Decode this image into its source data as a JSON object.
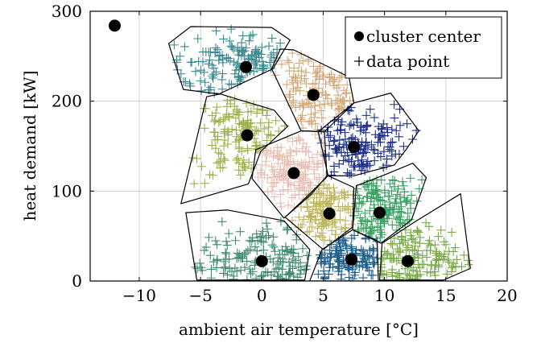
{
  "chart_data": {
    "type": "scatter",
    "xlabel": "ambient air temperature [°C]",
    "ylabel": "heat demand [kW]",
    "xlim": [
      -14,
      20
    ],
    "ylim": [
      0,
      300
    ],
    "xticks": [
      -10,
      -5,
      0,
      5,
      10,
      15,
      20
    ],
    "yticks": [
      0,
      100,
      200,
      300
    ],
    "xtick_labels": [
      "−10",
      "−5",
      "0",
      "5",
      "10",
      "15",
      "20"
    ],
    "ytick_labels": [
      "0",
      "100",
      "200",
      "300"
    ],
    "grid": true,
    "legend": {
      "placement": "top-right",
      "entries": [
        {
          "marker": "dot",
          "label": "cluster center"
        },
        {
          "marker": "plus",
          "label": "data point"
        }
      ]
    },
    "cluster_centers": [
      {
        "x": -12,
        "y": 284
      },
      {
        "x": -1.3,
        "y": 238
      },
      {
        "x": 4.2,
        "y": 207
      },
      {
        "x": -1.2,
        "y": 162
      },
      {
        "x": 7.5,
        "y": 149
      },
      {
        "x": 2.6,
        "y": 120
      },
      {
        "x": 5.5,
        "y": 75
      },
      {
        "x": 9.6,
        "y": 76
      },
      {
        "x": 0,
        "y": 22
      },
      {
        "x": 7.3,
        "y": 24
      },
      {
        "x": 11.9,
        "y": 22
      }
    ],
    "clusters": [
      {
        "color": "#3a8a90",
        "cx": -1.3,
        "cy": 238,
        "sx": 2.5,
        "sy": 16,
        "n": 140,
        "polygon": [
          [
            -7.6,
            264
          ],
          [
            -5.8,
            283
          ],
          [
            0.8,
            282
          ],
          [
            2.3,
            268
          ],
          [
            0.9,
            236
          ],
          [
            -3.5,
            208
          ],
          [
            -6.4,
            213
          ]
        ]
      },
      {
        "color": "#d2aa7c",
        "cx": 4.2,
        "cy": 207,
        "sx": 1.7,
        "sy": 20,
        "n": 130,
        "polygon": [
          [
            2.6,
            257
          ],
          [
            7.1,
            227
          ],
          [
            7.5,
            198
          ],
          [
            5.1,
            166
          ],
          [
            3.2,
            167
          ],
          [
            0.8,
            236
          ],
          [
            1.5,
            258
          ]
        ]
      },
      {
        "color": "#9bb24f",
        "cx": -1.2,
        "cy": 162,
        "sx": 2.0,
        "sy": 20,
        "n": 140,
        "polygon": [
          [
            -4.5,
            205
          ],
          [
            -3.4,
            208
          ],
          [
            1.0,
            190
          ],
          [
            2.1,
            172
          ],
          [
            -0.1,
            144
          ],
          [
            -1.1,
            108
          ],
          [
            -6.6,
            86
          ],
          [
            -5.2,
            165
          ]
        ]
      },
      {
        "color": "#1e2f8a",
        "cx": 7.5,
        "cy": 149,
        "sx": 1.8,
        "sy": 18,
        "n": 150,
        "polygon": [
          [
            4.6,
            166
          ],
          [
            7.5,
            198
          ],
          [
            10.5,
            209
          ],
          [
            12.8,
            167
          ],
          [
            11.8,
            147
          ],
          [
            10.8,
            129
          ],
          [
            7.5,
            117
          ],
          [
            5.4,
            117
          ]
        ]
      },
      {
        "color": "#e8c0b5",
        "cx": 2.6,
        "cy": 120,
        "sx": 1.6,
        "sy": 18,
        "n": 150,
        "polygon": [
          [
            3.2,
            167
          ],
          [
            5.1,
            166
          ],
          [
            5.3,
            117
          ],
          [
            4.0,
            96
          ],
          [
            1.8,
            70
          ],
          [
            -0.8,
            114
          ],
          [
            -0.5,
            146
          ]
        ]
      },
      {
        "color": "#bfb660",
        "cx": 5.5,
        "cy": 75,
        "sx": 1.3,
        "sy": 16,
        "n": 130,
        "polygon": [
          [
            3.9,
            97
          ],
          [
            5.4,
            117
          ],
          [
            7.5,
            104
          ],
          [
            7.4,
            60
          ],
          [
            5.0,
            35
          ],
          [
            1.9,
            71
          ]
        ]
      },
      {
        "color": "#38a060",
        "cx": 9.6,
        "cy": 76,
        "sx": 1.7,
        "sy": 18,
        "n": 150,
        "polygon": [
          [
            7.7,
            106
          ],
          [
            10.0,
            118
          ],
          [
            12.3,
            131
          ],
          [
            13.4,
            115
          ],
          [
            12.2,
            68
          ],
          [
            9.7,
            42
          ],
          [
            7.4,
            57
          ]
        ]
      },
      {
        "color": "#3d8a70",
        "cx": 0,
        "cy": 22,
        "sx": 2.8,
        "sy": 16,
        "n": 150,
        "polygon": [
          [
            -6.2,
            76
          ],
          [
            -2.8,
            79
          ],
          [
            1.8,
            67
          ],
          [
            3.9,
            35
          ],
          [
            3.5,
            1
          ],
          [
            -5.3,
            1
          ]
        ]
      },
      {
        "color": "#1d5d8a",
        "cx": 7.3,
        "cy": 24,
        "sx": 1.5,
        "sy": 12,
        "n": 130,
        "polygon": [
          [
            4.9,
            35
          ],
          [
            7.4,
            57
          ],
          [
            9.4,
            45
          ],
          [
            9.5,
            0
          ],
          [
            3.9,
            0
          ]
        ]
      },
      {
        "color": "#78aa48",
        "cx": 11.9,
        "cy": 22,
        "sx": 2.2,
        "sy": 16,
        "n": 140,
        "polygon": [
          [
            9.8,
            42
          ],
          [
            12.5,
            66
          ],
          [
            16.2,
            97
          ],
          [
            17.0,
            14
          ],
          [
            14.8,
            1
          ],
          [
            9.6,
            1
          ]
        ]
      }
    ]
  }
}
